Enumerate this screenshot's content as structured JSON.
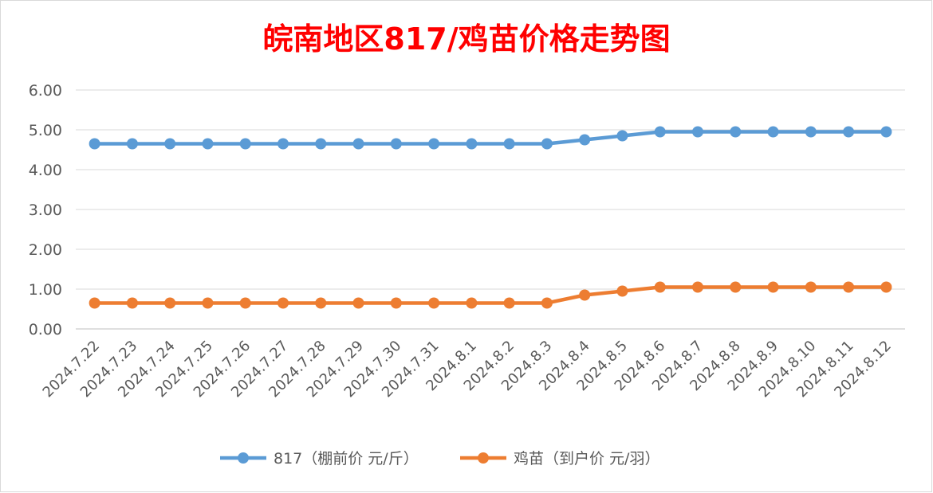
{
  "chart_data": {
    "type": "line",
    "title": "皖南地区817/鸡苗价格走势图",
    "xlabel": "",
    "ylabel": "",
    "ylim": [
      0,
      6
    ],
    "yticks": [
      "0.00",
      "1.00",
      "2.00",
      "3.00",
      "4.00",
      "5.00",
      "6.00"
    ],
    "grid": true,
    "legend_position": "bottom",
    "categories": [
      "2024.7.22",
      "2024.7.23",
      "2024.7.24",
      "2024.7.25",
      "2024.7.26",
      "2024.7.27",
      "2024.7.28",
      "2024.7.29",
      "2024.7.30",
      "2024.7.31",
      "2024.8.1",
      "2024.8.2",
      "2024.8.3",
      "2024.8.4",
      "2024.8.5",
      "2024.8.6",
      "2024.8.7",
      "2024.8.8",
      "2024.8.9",
      "2024.8.10",
      "2024.8.11",
      "2024.8.12"
    ],
    "series": [
      {
        "name": "817（棚前价 元/斤）",
        "color": "#5B9BD5",
        "values": [
          4.65,
          4.65,
          4.65,
          4.65,
          4.65,
          4.65,
          4.65,
          4.65,
          4.65,
          4.65,
          4.65,
          4.65,
          4.65,
          4.75,
          4.85,
          4.95,
          4.95,
          4.95,
          4.95,
          4.95,
          4.95,
          4.95
        ]
      },
      {
        "name": "鸡苗（到户价 元/羽）",
        "color": "#ED7D31",
        "values": [
          0.65,
          0.65,
          0.65,
          0.65,
          0.65,
          0.65,
          0.65,
          0.65,
          0.65,
          0.65,
          0.65,
          0.65,
          0.65,
          0.85,
          0.95,
          1.05,
          1.05,
          1.05,
          1.05,
          1.05,
          1.05,
          1.05
        ]
      }
    ],
    "title_color": "#FF0000"
  }
}
